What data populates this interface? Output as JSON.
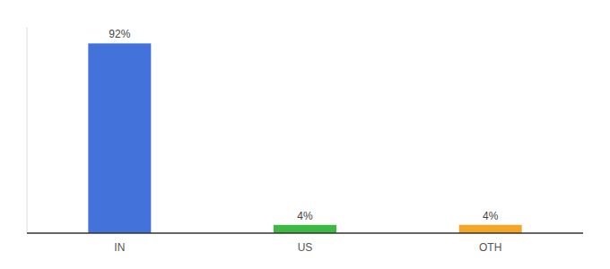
{
  "chart_data": {
    "type": "bar",
    "categories": [
      "IN",
      "US",
      "OTH"
    ],
    "values": [
      92,
      4,
      4
    ],
    "value_labels": [
      "92%",
      "4%",
      "4%"
    ],
    "colors": [
      "#4472db",
      "#3cb843",
      "#f5a623"
    ],
    "ylim": [
      0,
      100
    ],
    "grid": false,
    "tick_labels": "x",
    "data_labels": true
  }
}
